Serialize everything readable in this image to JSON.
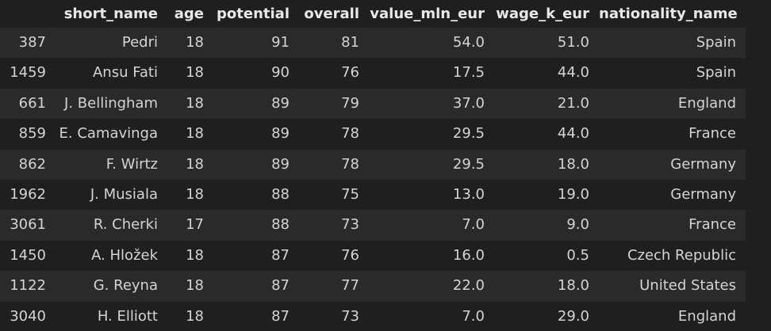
{
  "table": {
    "index_header": "",
    "columns": [
      "short_name",
      "age",
      "potential",
      "overall",
      "value_mln_eur",
      "wage_k_eur",
      "nationality_name"
    ],
    "rows": [
      {
        "index": "387",
        "cells": [
          "Pedri",
          "18",
          "91",
          "81",
          "54.0",
          "51.0",
          "Spain"
        ]
      },
      {
        "index": "1459",
        "cells": [
          "Ansu Fati",
          "18",
          "90",
          "76",
          "17.5",
          "44.0",
          "Spain"
        ]
      },
      {
        "index": "661",
        "cells": [
          "J. Bellingham",
          "18",
          "89",
          "79",
          "37.0",
          "21.0",
          "England"
        ]
      },
      {
        "index": "859",
        "cells": [
          "E. Camavinga",
          "18",
          "89",
          "78",
          "29.5",
          "44.0",
          "France"
        ]
      },
      {
        "index": "862",
        "cells": [
          "F. Wirtz",
          "18",
          "89",
          "78",
          "29.5",
          "18.0",
          "Germany"
        ]
      },
      {
        "index": "1962",
        "cells": [
          "J. Musiala",
          "18",
          "88",
          "75",
          "13.0",
          "19.0",
          "Germany"
        ]
      },
      {
        "index": "3061",
        "cells": [
          "R. Cherki",
          "17",
          "88",
          "73",
          "7.0",
          "9.0",
          "France"
        ]
      },
      {
        "index": "1450",
        "cells": [
          "A. Hložek",
          "18",
          "87",
          "76",
          "16.0",
          "0.5",
          "Czech Republic"
        ]
      },
      {
        "index": "1122",
        "cells": [
          "G. Reyna",
          "18",
          "87",
          "77",
          "22.0",
          "18.0",
          "United States"
        ]
      },
      {
        "index": "3040",
        "cells": [
          "H. Elliott",
          "18",
          "87",
          "73",
          "7.0",
          "29.0",
          "England"
        ]
      }
    ]
  },
  "colors": {
    "background": "#1f1f1f",
    "row_stripe": "#2a2a2a",
    "text": "#d4d4d4"
  }
}
